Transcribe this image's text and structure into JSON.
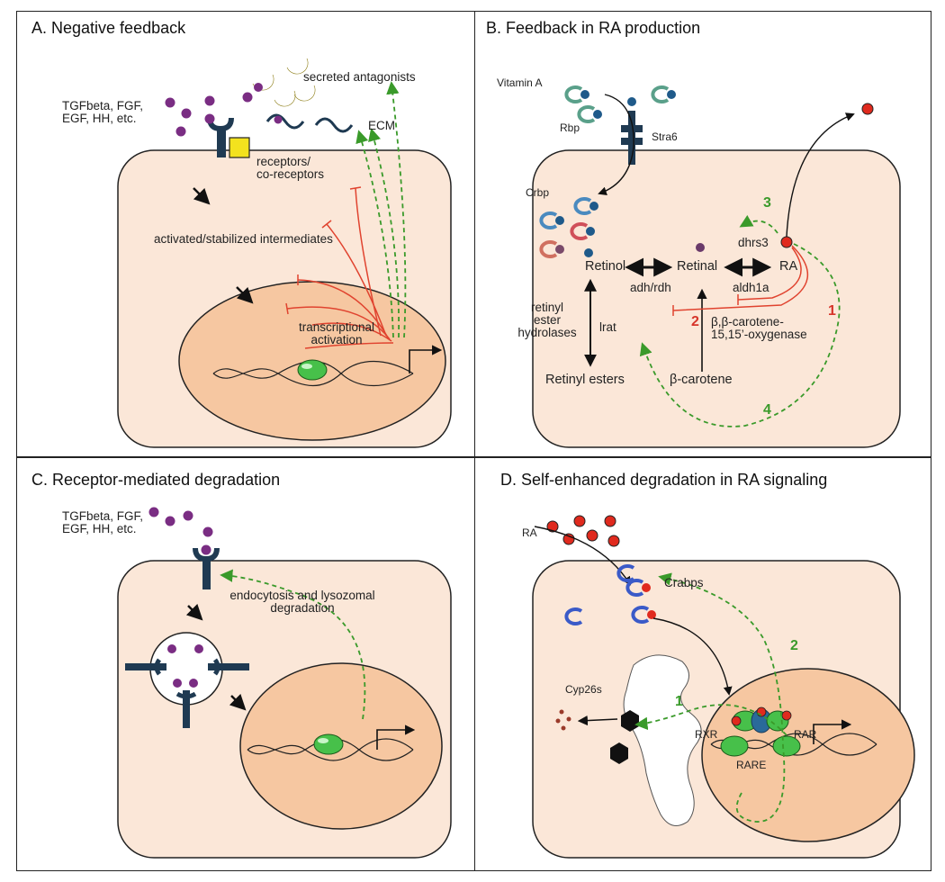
{
  "panels": {
    "a": {
      "title": "A. Negative feedback",
      "ligands": "TGFbeta, FGF,\nEGF, HH, etc.",
      "secreted": "secreted antagonists",
      "ecm": "ECM",
      "receptors": "receptors/\nco-receptors",
      "intermediates": "activated/stabilized intermediates",
      "transcription": "transcriptional\nactivation"
    },
    "b": {
      "title": "B. Feedback in RA production",
      "vitamin_a": "Vitamin A",
      "rbp": "Rbp",
      "stra6": "Stra6",
      "crbp": "Crbp",
      "dhrs3": "dhrs3",
      "retinol": "Retinol",
      "retinal": "Retinal",
      "ra": "RA",
      "adh": "adh/rdh",
      "aldh": "aldh1a",
      "hydrolases": "retinyl\nester\nhydrolases",
      "lrat": "lrat",
      "oxygenase": "β,β-carotene-\n15,15’-oxygenase",
      "retinyl_esters": "Retinyl esters",
      "carotene": "β-carotene",
      "n1": "1",
      "n2": "2",
      "n3": "3",
      "n4": "4"
    },
    "c": {
      "title": "C. Receptor-mediated degradation",
      "ligands": "TGFbeta, FGF,\nEGF, HH, etc.",
      "endocytosis": "endocytosis and lysozomal\ndegradation"
    },
    "d": {
      "title": "D. Self-enhanced degradation in RA signaling",
      "ra": "RA",
      "crabps": "Crabps",
      "cyp": "Cyp26s",
      "rxr": "RXR",
      "rar": "RAR",
      "rare": "RARE",
      "n1": "1",
      "n2": "2"
    }
  },
  "colors": {
    "cell": "#fbe7d8",
    "nucleus": "#f6c7a1",
    "receptor": "#1f3a52",
    "ligand": "#7a2d83",
    "antagonist": "#efe24a",
    "inhibit": "#e0432f",
    "feedback": "#3a9a2a",
    "protein": "#47c04a",
    "ra_dot": "#e02a1e"
  }
}
